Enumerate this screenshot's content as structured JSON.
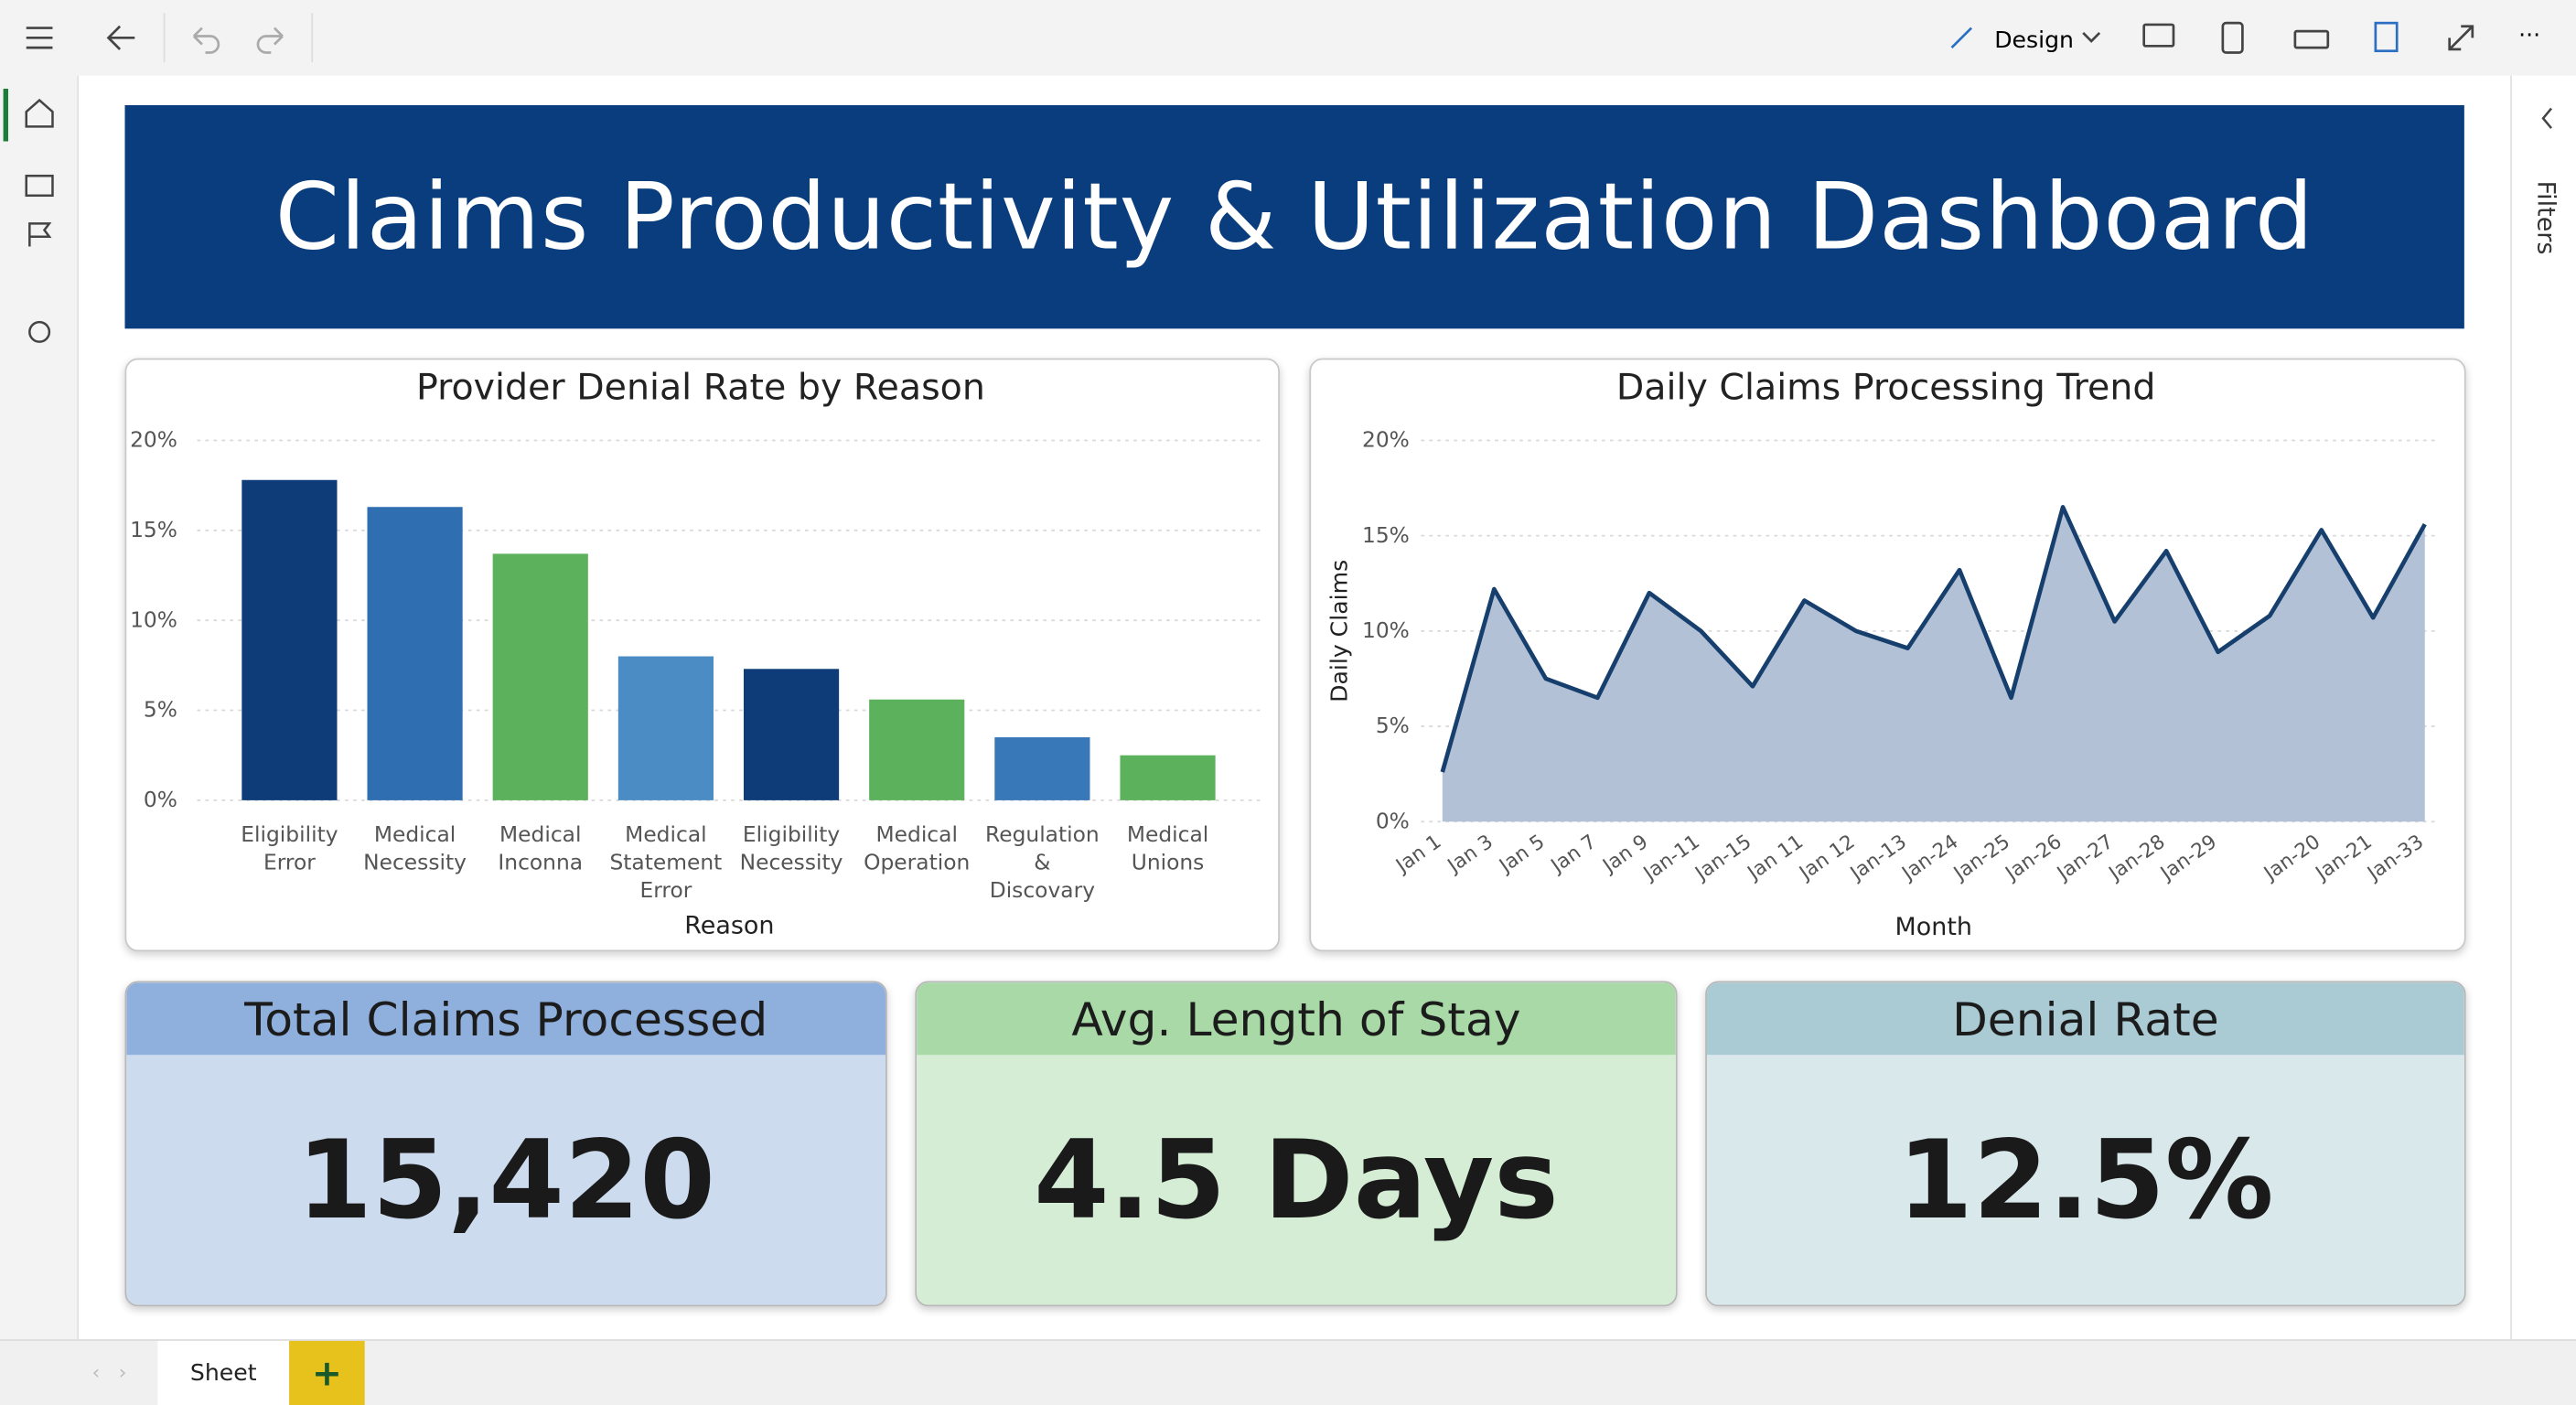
{
  "toolbar": {
    "mode": "Design",
    "more": "···"
  },
  "side_panel": {
    "label": "Filters"
  },
  "dashboard": {
    "title": "Claims Productivity & Utilization Dashboard"
  },
  "chart_data": [
    {
      "type": "bar",
      "title": "Provider Denial Rate by Reason",
      "x_label": "Reason",
      "categories": [
        "Eligibility Error",
        "Medical Necessity",
        "Medical Inconna",
        "Medical Statement Error",
        "Eligibility Necessity",
        "Medical Operation",
        "Regulation & Discovary",
        "Medical Unions"
      ],
      "values": [
        17.8,
        16.3,
        13.7,
        8.0,
        7.3,
        5.6,
        3.5,
        2.5
      ],
      "colors": [
        "#0d3c78",
        "#2f6eb1",
        "#5cb15d",
        "#4b8cc5",
        "#0d3c78",
        "#5cb15d",
        "#3877b8",
        "#5cb15d"
      ],
      "ylim": [
        0,
        20
      ],
      "yticks": [
        {
          "value": 0,
          "label": "0%"
        },
        {
          "value": 5,
          "label": "5%"
        },
        {
          "value": 10,
          "label": "10%"
        },
        {
          "value": 15,
          "label": "15%"
        },
        {
          "value": 20,
          "label": "20%"
        }
      ],
      "grid": true
    },
    {
      "type": "area",
      "title": "Daily Claims Processing Trend",
      "x_label": "Month",
      "y_label": "Daily Claims",
      "categories": [
        "Jan 1",
        "Jan 3",
        "Jan 5",
        "Jan 7",
        "Jan 9",
        "Jan-11",
        "Jan-15",
        "Jan 11",
        "Jan 12",
        "Jan-13",
        "Jan-24",
        "Jan-25",
        "Jan-26",
        "Jan-27",
        "Jan-28",
        "Jan-29",
        null,
        "Jan-20",
        "Jan-21",
        "Jan-33"
      ],
      "values": [
        2.6,
        12.2,
        7.5,
        6.5,
        12.0,
        10.0,
        7.1,
        11.6,
        10.0,
        9.1,
        13.2,
        6.5,
        16.5,
        10.5,
        14.2,
        8.9,
        10.8,
        15.3,
        10.7,
        15.6
      ],
      "color": "#173f6e",
      "fill": "#b3c1d6",
      "ylim": [
        0,
        20
      ],
      "yticks": [
        {
          "value": 0,
          "label": "0%"
        },
        {
          "value": 5,
          "label": "5%"
        },
        {
          "value": 10,
          "label": "10%"
        },
        {
          "value": 15,
          "label": "15%"
        },
        {
          "value": 20,
          "label": "20%"
        }
      ],
      "grid": true
    }
  ],
  "kpis": [
    {
      "label": "Total Claims Processed",
      "value": "15,420"
    },
    {
      "label": "Avg. Length of Stay",
      "value": "4.5 Days"
    },
    {
      "label": "Denial Rate",
      "value": "12.5%"
    }
  ],
  "footer": {
    "sheet": "Sheet",
    "add": "+"
  }
}
